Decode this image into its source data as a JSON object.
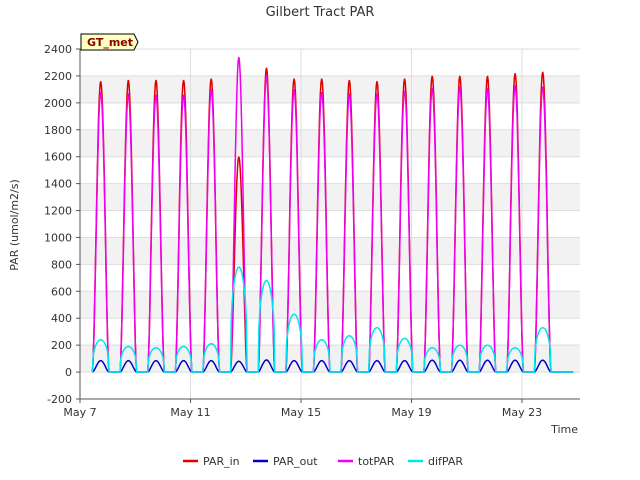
{
  "chart_data": {
    "type": "line",
    "title": "Gilbert Tract PAR",
    "xlabel": "Time",
    "ylabel": "PAR (umol/m2/s)",
    "ylim": [
      -200,
      2400
    ],
    "xlim": [
      7,
      25.1
    ],
    "yticks": [
      -200,
      0,
      200,
      400,
      600,
      800,
      1000,
      1200,
      1400,
      1600,
      1800,
      2000,
      2200,
      2400
    ],
    "xticks": [
      {
        "value": 7,
        "label": "May 7"
      },
      {
        "value": 11,
        "label": "May 11"
      },
      {
        "value": 15,
        "label": "May 15"
      },
      {
        "value": 19,
        "label": "May 19"
      },
      {
        "value": 23,
        "label": "May 23"
      }
    ],
    "grid": true,
    "legend_position": "bottom",
    "annotation": "GT_met",
    "x_units": "day of May (diurnal cycles, one peak per day, May 7 – May 24)",
    "series": [
      {
        "name": "PAR_in",
        "color": "#e00000",
        "daily_peaks": [
          2160,
          2170,
          2170,
          2170,
          2180,
          1600,
          2260,
          2180,
          2180,
          2170,
          2160,
          2180,
          2200,
          2200,
          2200,
          2220,
          2230
        ]
      },
      {
        "name": "PAR_out",
        "color": "#0000cc",
        "daily_peaks": [
          85,
          85,
          85,
          85,
          85,
          80,
          90,
          85,
          85,
          85,
          85,
          85,
          88,
          88,
          88,
          88,
          88
        ]
      },
      {
        "name": "totPAR",
        "color": "#ee00ee",
        "daily_peaks": [
          2080,
          2070,
          2060,
          2060,
          2100,
          2340,
          2200,
          2100,
          2080,
          2070,
          2070,
          2090,
          2110,
          2120,
          2110,
          2130,
          2120
        ]
      },
      {
        "name": "difPAR",
        "color": "#00e5ee",
        "daily_peaks": [
          240,
          190,
          180,
          190,
          210,
          780,
          680,
          430,
          240,
          270,
          330,
          250,
          180,
          200,
          200,
          180,
          330
        ]
      }
    ],
    "day_starts": [
      7.45,
      8.45,
      9.45,
      10.45,
      11.45,
      12.45,
      13.45,
      14.45,
      15.45,
      16.45,
      17.45,
      18.45,
      19.45,
      20.45,
      21.45,
      22.45,
      23.45
    ]
  }
}
